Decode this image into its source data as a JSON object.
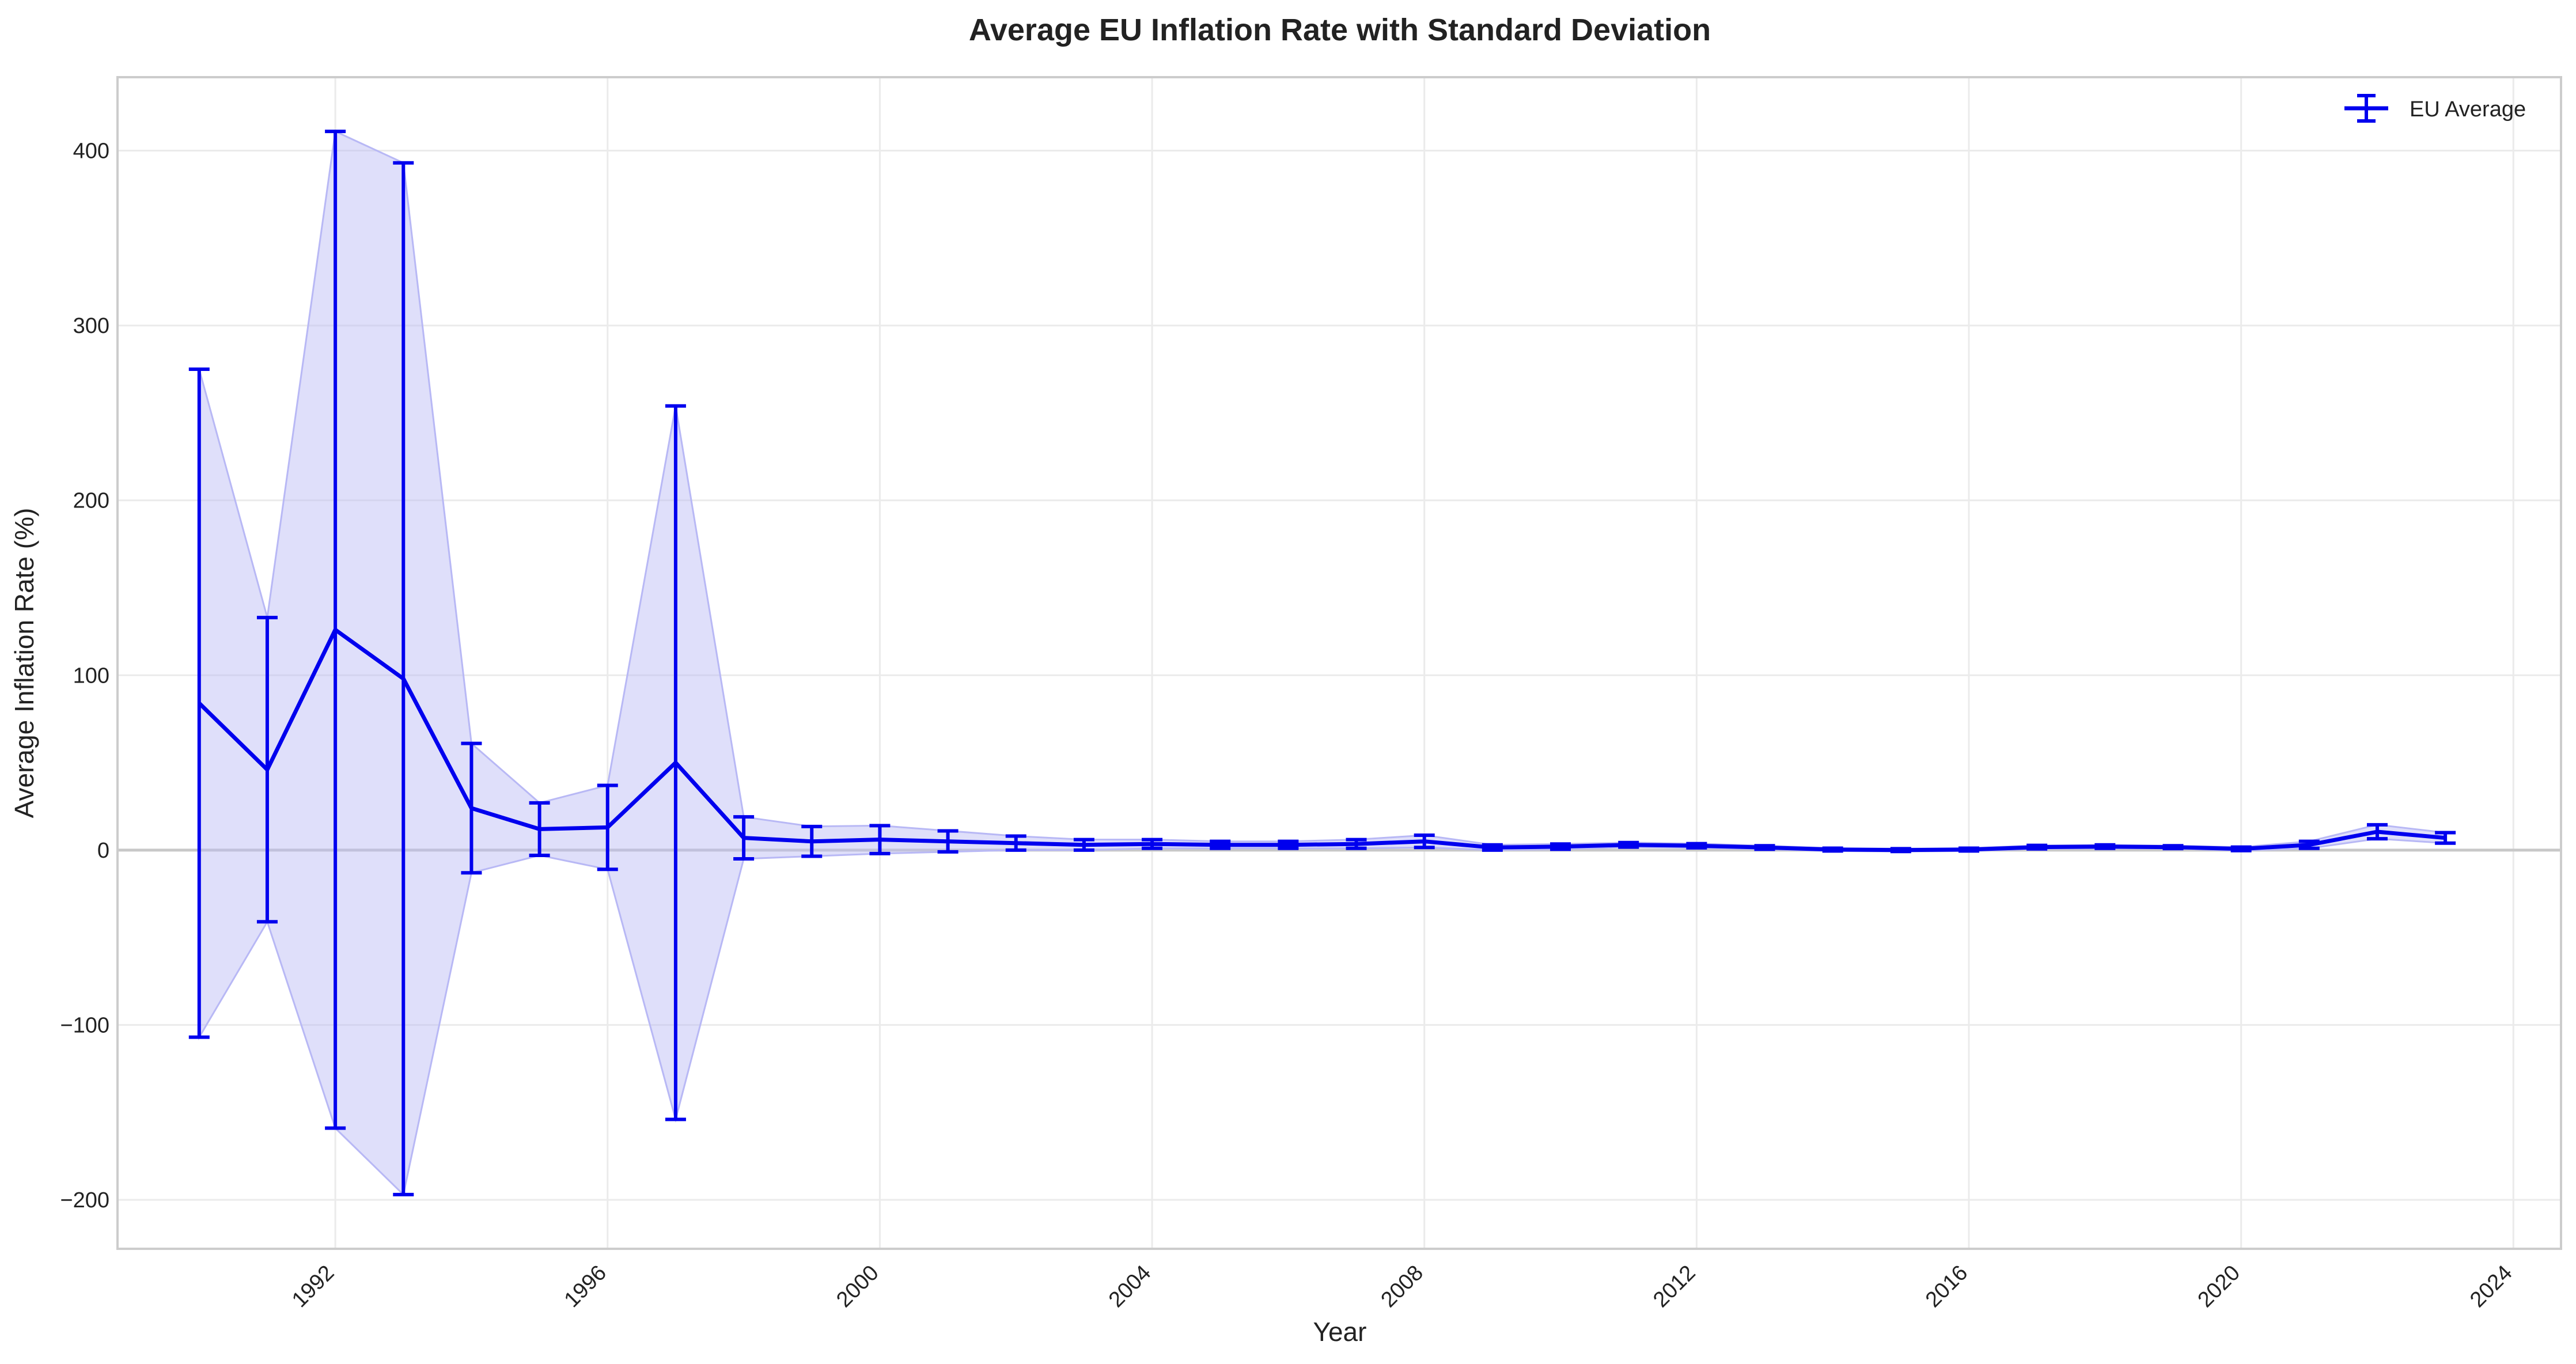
{
  "chart_data": {
    "type": "line",
    "title": "Average EU Inflation Rate with Standard Deviation",
    "xlabel": "Year",
    "ylabel": "Average Inflation Rate (%)",
    "xlim": [
      1988.8,
      2024.7
    ],
    "ylim": [
      -228,
      442
    ],
    "x_ticks": [
      1992,
      1996,
      2000,
      2004,
      2008,
      2012,
      2016,
      2020,
      2024
    ],
    "x_tick_labels": [
      "1992",
      "1996",
      "2000",
      "2004",
      "2008",
      "2012",
      "2016",
      "2020",
      "2024"
    ],
    "y_ticks": [
      -200,
      -100,
      0,
      100,
      200,
      300,
      400
    ],
    "y_tick_labels": [
      "−200",
      "−100",
      "0",
      "100",
      "200",
      "300",
      "400"
    ],
    "grid": true,
    "legend_position": "top-right",
    "colors": {
      "series": "#0000ee",
      "band": "#b8b8f5",
      "grid": "#ebebeb",
      "zero_line": "#c8c8c8",
      "frame": "#cccccc"
    },
    "series": [
      {
        "name": "EU Average",
        "x": [
          1990,
          1991,
          1992,
          1993,
          1994,
          1995,
          1996,
          1997,
          1998,
          1999,
          2000,
          2001,
          2002,
          2003,
          2004,
          2005,
          2006,
          2007,
          2008,
          2009,
          2010,
          2011,
          2012,
          2013,
          2014,
          2015,
          2016,
          2017,
          2018,
          2019,
          2020,
          2021,
          2022,
          2023
        ],
        "y": [
          84,
          46,
          126,
          98,
          24,
          12,
          13,
          50,
          7,
          5,
          6,
          5,
          4,
          3,
          3.5,
          3,
          3,
          3.5,
          5,
          1.5,
          2,
          3,
          2.5,
          1.5,
          0.3,
          0,
          0.3,
          1.7,
          2,
          1.7,
          0.7,
          3,
          10.5,
          7
        ],
        "std": [
          191,
          87,
          285,
          295,
          37,
          15,
          24,
          204,
          12,
          8.5,
          8,
          6,
          4,
          3,
          2.5,
          2,
          2,
          2.5,
          3.5,
          1.5,
          1.5,
          1.3,
          1.2,
          1,
          0.8,
          0.8,
          0.8,
          1,
          1,
          0.8,
          1,
          2,
          4,
          3
        ]
      }
    ]
  }
}
